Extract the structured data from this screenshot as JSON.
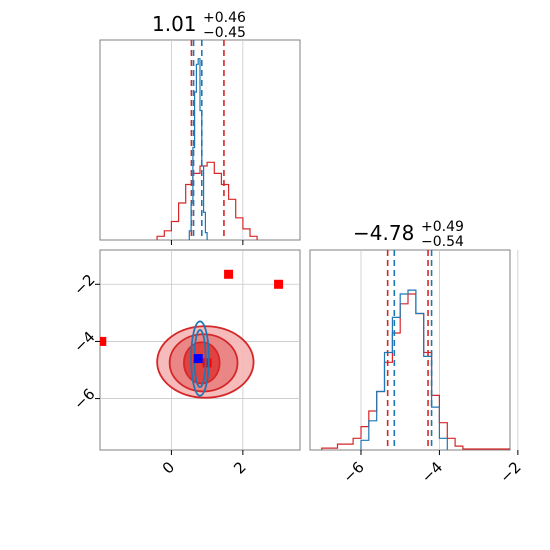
{
  "chart_data": {
    "type": "corner",
    "titles": {
      "param1": {
        "main": "1.01",
        "sup": "+0.46",
        "sub": "−0.45"
      },
      "param2": {
        "main": "−4.78",
        "sup": "+0.49",
        "sub": "−0.54"
      }
    },
    "xlim_param1": [
      -2,
      3.6
    ],
    "ylim_param2": [
      -7.8,
      -0.8
    ],
    "xlim_param2": [
      -7.3,
      -2.2
    ],
    "ticks_param1": [
      0,
      2
    ],
    "tick_labels_param1": [
      "0",
      "2"
    ],
    "ticks_param2_y": [
      -2,
      -4,
      -6
    ],
    "tick_labels_param2_y": [
      "−2",
      "−4",
      "−6"
    ],
    "ticks_param2_x": [
      -6,
      -4,
      -2
    ],
    "tick_labels_param2_x": [
      "−6",
      "−4",
      "−2"
    ],
    "series": [
      {
        "color": "#d62728",
        "quantiles_param1": [
          0.56,
          1.47
        ],
        "quantiles_param2": [
          -5.32,
          -4.29
        ],
        "hist_param1": {
          "bins": [
            -0.4,
            -0.2,
            0.0,
            0.2,
            0.4,
            0.6,
            0.8,
            1.0,
            1.2,
            1.4,
            1.6,
            1.8,
            2.0,
            2.2,
            2.4
          ],
          "counts": [
            0.02,
            0.05,
            0.1,
            0.2,
            0.3,
            0.36,
            0.4,
            0.42,
            0.36,
            0.3,
            0.22,
            0.12,
            0.06,
            0.02
          ]
        },
        "hist_param2": {
          "bins": [
            -7.0,
            -6.6,
            -6.2,
            -6.0,
            -5.8,
            -5.6,
            -5.4,
            -5.2,
            -5.0,
            -4.8,
            -4.6,
            -4.4,
            -4.2,
            -4.0,
            -3.8,
            -3.6,
            -3.4,
            -2.2
          ],
          "counts": [
            0.01,
            0.03,
            0.06,
            0.12,
            0.2,
            0.3,
            0.45,
            0.6,
            0.75,
            0.8,
            0.7,
            0.5,
            0.28,
            0.14,
            0.06,
            0.02,
            0.005
          ]
        },
        "contour_ellipses": [
          {
            "cx": 0.85,
            "cy": -4.75,
            "rx": 0.5,
            "ry": 0.72
          },
          {
            "cx": 0.9,
            "cy": -4.75,
            "rx": 0.95,
            "ry": 1.0
          },
          {
            "cx": 0.95,
            "cy": -4.72,
            "rx": 1.35,
            "ry": 1.25
          }
        ],
        "points": [
          {
            "x": 1.6,
            "y": -1.65
          },
          {
            "x": 3.0,
            "y": -2.0
          },
          {
            "x": -1.95,
            "y": -4.0
          },
          {
            "x": 1.0,
            "y": -4.75
          }
        ]
      },
      {
        "color": "#1f77b4",
        "quantiles_param1": [
          0.62,
          0.85
        ],
        "quantiles_param2": [
          -5.15,
          -4.2
        ],
        "hist_param1": {
          "bins": [
            0.5,
            0.55,
            0.6,
            0.65,
            0.7,
            0.75,
            0.8,
            0.85,
            0.9,
            0.95,
            1.0
          ],
          "counts": [
            0.05,
            0.2,
            0.5,
            0.8,
            0.95,
            0.98,
            0.7,
            0.4,
            0.15,
            0.04
          ]
        },
        "hist_param2": {
          "bins": [
            -6.0,
            -5.8,
            -5.6,
            -5.4,
            -5.2,
            -5.0,
            -4.8,
            -4.6,
            -4.4,
            -4.2,
            -4.0,
            -3.8
          ],
          "counts": [
            0.05,
            0.15,
            0.3,
            0.5,
            0.68,
            0.8,
            0.82,
            0.7,
            0.48,
            0.22,
            0.06
          ]
        },
        "contour_ellipses": [
          {
            "cx": 0.8,
            "cy": -4.6,
            "rx": 0.16,
            "ry": 1.0
          },
          {
            "cx": 0.8,
            "cy": -4.6,
            "rx": 0.25,
            "ry": 1.3
          }
        ],
        "points": [
          {
            "x": 0.75,
            "y": -4.6
          }
        ]
      }
    ]
  }
}
